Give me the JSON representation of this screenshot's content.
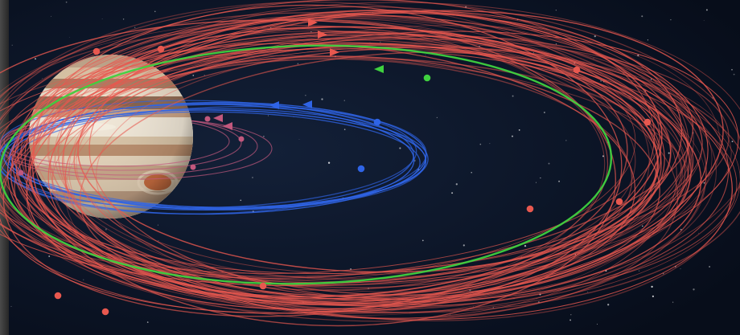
{
  "scene": {
    "subject": "jupiter-with-moon-orbits",
    "colors": {
      "space": "#0b1426",
      "retrograde_orbits": "#e8584f",
      "prograde_outer_orbit": "#3fd13f",
      "inner_prograde_orbits": "#2f64e6",
      "innermost_orbits": "#c2587d",
      "frame_edge": "#3a3a3a"
    },
    "icons": {
      "direction_marker": "triangle-arrow",
      "moon_marker": "dot"
    }
  }
}
